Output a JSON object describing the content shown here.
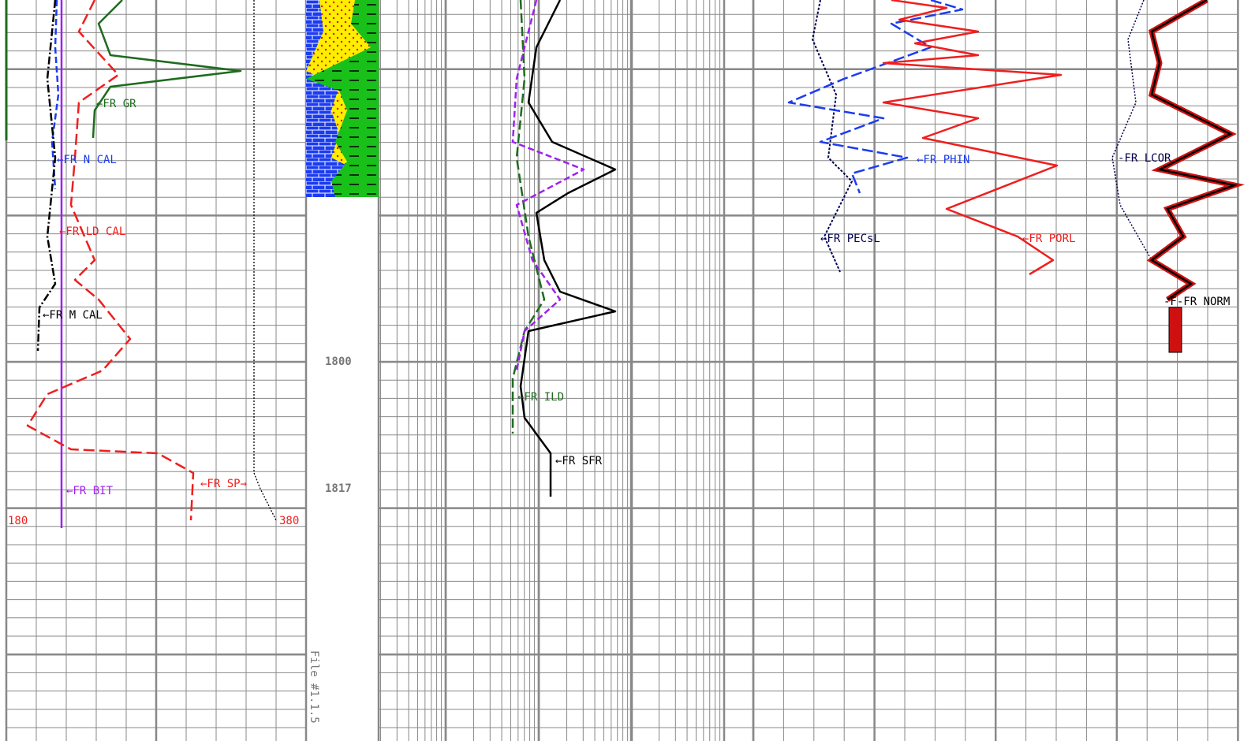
{
  "labels": {
    "gr": "←FR GR",
    "ncal": "←FR N CAL",
    "ldcal": "←FR LD CAL",
    "mcal": "←FR M CAL",
    "bit": "←FR BIT",
    "sp": "←FR SP→",
    "ild": "←FR ILD",
    "sfr": "←FR SFR",
    "phin": "←FR PHIN",
    "pecsl": "←FR PECsL",
    "porl": "←FR PORL",
    "lcor": "-FR LCOR",
    "norm": "-F-FR NORM"
  },
  "scale": {
    "left": "180",
    "right": "380"
  },
  "depths": [
    1800,
    1817
  ],
  "file_label": "File #1.1.5"
}
